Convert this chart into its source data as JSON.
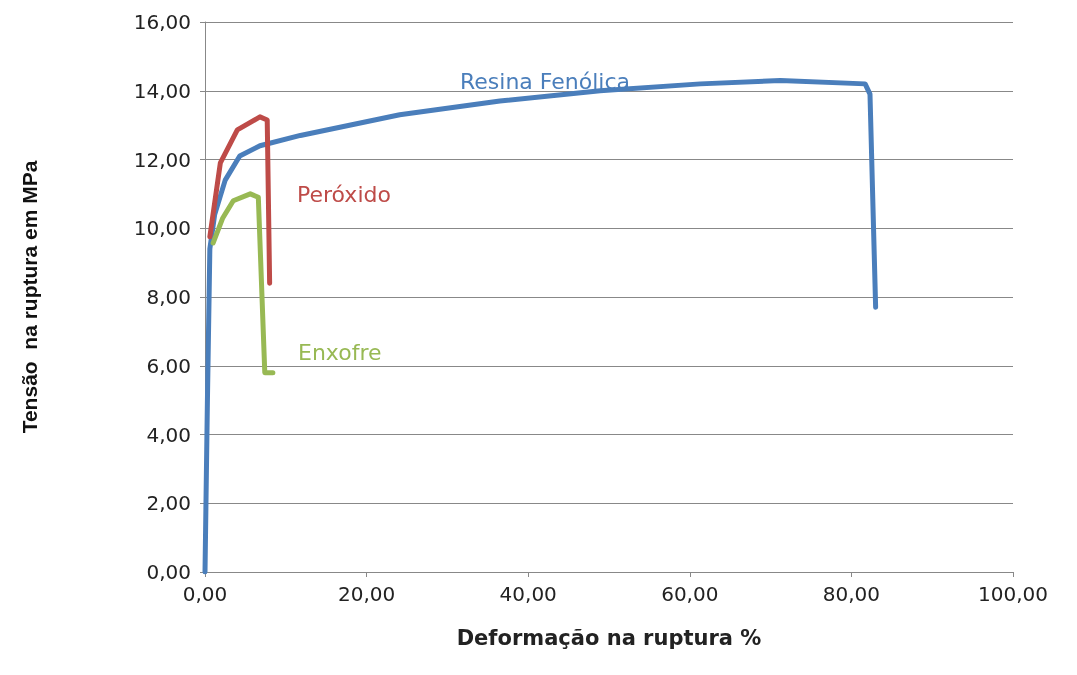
{
  "chart_data": {
    "type": "line",
    "xlabel": "Deformação na ruptura %",
    "ylabel": "Tensão  na ruptura em MPa",
    "xlim": [
      0,
      100
    ],
    "xticks": [
      {
        "value": 0,
        "label": "0,00"
      },
      {
        "value": 20,
        "label": "20,00"
      },
      {
        "value": 40,
        "label": "40,00"
      },
      {
        "value": 60,
        "label": "60,00"
      },
      {
        "value": 80,
        "label": "80,00"
      },
      {
        "value": 100,
        "label": "100,00"
      }
    ],
    "ylim": [
      0,
      16
    ],
    "yticks": [
      {
        "value": 0,
        "label": "0,00"
      },
      {
        "value": 2,
        "label": "2,00"
      },
      {
        "value": 4,
        "label": "4,00"
      },
      {
        "value": 6,
        "label": "6,00"
      },
      {
        "value": 8,
        "label": "8,00"
      },
      {
        "value": 10,
        "label": "10,00"
      },
      {
        "value": 12,
        "label": "12,00"
      },
      {
        "value": 14,
        "label": "14,00"
      },
      {
        "value": 16,
        "label": "16,00"
      }
    ],
    "grid": "y",
    "legend": false,
    "marker": "none",
    "line_style": "solid",
    "series": [
      {
        "name": "Resina Fenólica",
        "color": "#4a7ebb",
        "x": [
          0,
          0.3,
          0.6,
          1.2,
          2.5,
          4.3,
          6.8,
          11.8,
          24.1,
          36.5,
          48.9,
          61.3,
          71.2,
          81.7,
          82.3,
          83.0
        ],
        "values": [
          0,
          5,
          9.4,
          10.4,
          11.4,
          12.1,
          12.4,
          12.7,
          13.3,
          13.7,
          14.0,
          14.2,
          14.3,
          14.2,
          13.9,
          7.7
        ]
      },
      {
        "name": "Peróxido",
        "color": "#be4b48",
        "x": [
          0.6,
          1.9,
          4.0,
          6.8,
          7.7,
          8.0
        ],
        "values": [
          9.75,
          11.9,
          12.86,
          13.24,
          13.15,
          8.4
        ]
      },
      {
        "name": "Enxofre",
        "color": "#98b954",
        "x": [
          1.0,
          2.2,
          3.5,
          5.6,
          6.6,
          7.4,
          8.4
        ],
        "values": [
          9.57,
          10.3,
          10.8,
          11.0,
          10.9,
          5.8,
          5.8
        ]
      }
    ]
  }
}
